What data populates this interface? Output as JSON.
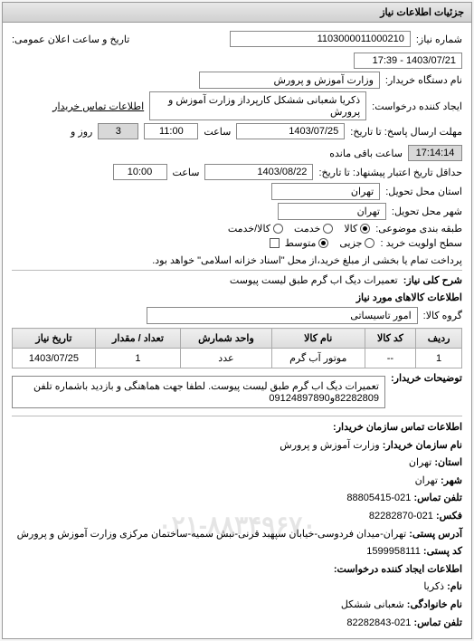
{
  "panel_title": "جزئیات اطلاعات نیاز",
  "header": {
    "req_number_label": "شماره نیاز:",
    "req_number": "1103000011000210",
    "announce_label": "تاریخ و ساعت اعلان عمومی:",
    "announce_value": "1403/07/21 - 17:39",
    "buyer_org_label": "نام دستگاه خریدار:",
    "buyer_org": "وزارت آموزش و پرورش",
    "creator_label": "ایجاد کننده درخواست:",
    "creator": "ذکریا شعبانی ششکل کارپرداز وزارت آموزش و پرورش",
    "contact_label": "اطلاعات تماس خریدار",
    "deadline_reply_label": "مهلت ارسال پاسخ: تا تاریخ:",
    "deadline_reply_date": "1403/07/25",
    "time_label": "ساعت",
    "deadline_reply_time": "11:00",
    "remaining_days": "3",
    "remaining_days_label": "روز و",
    "remaining_time": "17:14:14",
    "remaining_suffix": "ساعت باقی مانده",
    "valid_label": "حداقل تاریخ اعتبار پیشنهاد: تا تاریخ:",
    "valid_date": "1403/08/22",
    "valid_time": "10:00",
    "province_label": "استان محل تحویل:",
    "province": "تهران",
    "city_label": "شهر محل تحویل:",
    "city": "تهران",
    "category_label": "طبقه بندی موضوعی:",
    "radio_goods": "کالا",
    "radio_service": "خدمت",
    "radio_both": "کالا/خدمت",
    "priority_label": "سطح اولویت خرید :",
    "radio_partial": "جزیی",
    "radio_medium": "متوسط",
    "settlement_text": "پرداخت تمام یا بخشی از مبلغ خرید،از محل \"اسناد خزانه اسلامی\" خواهد بود.",
    "req_title_label": "شرح کلی نیاز:",
    "req_title": "تعمیرات دیگ اب گرم طبق لیست پیوست"
  },
  "goods": {
    "section_title": "اطلاعات کالاهای مورد نیاز",
    "group_label": "گروه کالا:",
    "group_value": "امور تاسیساتی",
    "table": {
      "headers": [
        "ردیف",
        "کد کالا",
        "نام کالا",
        "واحد شمارش",
        "تعداد / مقدار",
        "تاریخ نیاز"
      ],
      "rows": [
        [
          "1",
          "--",
          "موتور آب گرم",
          "عدد",
          "1",
          "1403/07/25"
        ]
      ]
    },
    "desc_label": "توضیحات خریدار:",
    "desc_text": "تعمیرات دیگ اب گرم طبق لیست پیوست. لطفا جهت هماهنگی و بازدید باشماره تلفن 82282809و09124897890"
  },
  "contact": {
    "section_title": "اطلاعات تماس سازمان خریدار:",
    "org_label": "نام سازمان خریدار:",
    "org_value": "وزارت آموزش و پرورش",
    "province_label": "استان:",
    "province_value": "تهران",
    "city_label": "شهر:",
    "city_value": "تهران",
    "phone_label": "تلفن تماس:",
    "phone_value": "021-88805415",
    "fax_label": "فکس:",
    "fax_value": "021-82282870",
    "address_label": "آدرس پستی:",
    "address_value": "تهران-میدان فردوسی-خیابان سپهبد قرنی-نبش سمیه-ساختمان مرکزی وزارت آموزش و پرورش",
    "postal_label": "کد پستی:",
    "postal_value": "1599958111",
    "creator_section": "اطلاعات ایجاد کننده درخواست:",
    "name_label": "نام:",
    "name_value": "ذکریا",
    "lastname_label": "نام خانوادگی:",
    "lastname_value": "شعبانی ششکل",
    "creator_phone_label": "تلفن تماس:",
    "creator_phone_value": "021-82282843",
    "watermark": "۰۲۱-۸۸۳۴۹۶۷۰"
  }
}
